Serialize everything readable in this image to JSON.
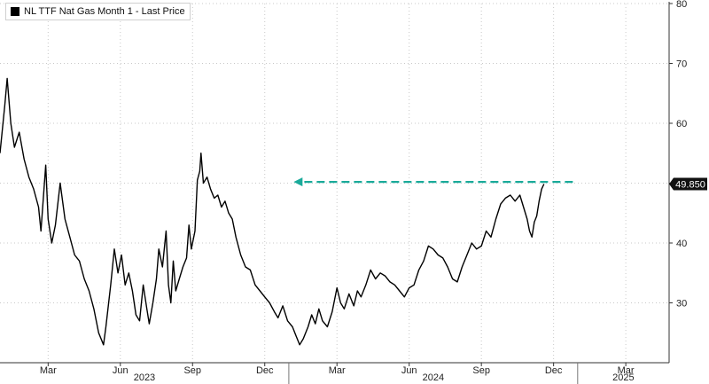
{
  "chart_data": {
    "type": "line",
    "legend": "NL TTF Nat Gas Month 1 - Last Price",
    "last_value_label": "49.850",
    "y_axis": {
      "ticks": [
        30,
        40,
        50,
        60,
        70,
        80
      ],
      "ylim": [
        20,
        80
      ],
      "position": "right"
    },
    "x_axis": {
      "month_ticks": [
        "Mar",
        "Jun",
        "Sep",
        "Dec",
        "Mar",
        "Jun",
        "Sep",
        "Dec",
        "Mar"
      ],
      "year_labels": [
        "2023",
        "2024",
        "2025"
      ],
      "range_months": [
        0,
        27.8
      ]
    },
    "grid": true,
    "annotation": {
      "type": "dashed-arrow",
      "direction": "left",
      "value": 50.2,
      "x_from": 23.8,
      "x_to": 12.2,
      "color": "#1aaa9a"
    },
    "series": [
      {
        "color": "#000000",
        "points": [
          [
            0.0,
            55.0
          ],
          [
            0.2,
            63.0
          ],
          [
            0.3,
            67.5
          ],
          [
            0.45,
            60.0
          ],
          [
            0.6,
            56.0
          ],
          [
            0.8,
            58.5
          ],
          [
            1.0,
            54.0
          ],
          [
            1.2,
            51.0
          ],
          [
            1.4,
            49.0
          ],
          [
            1.6,
            46.0
          ],
          [
            1.7,
            42.0
          ],
          [
            1.9,
            53.0
          ],
          [
            2.0,
            44.0
          ],
          [
            2.15,
            40.0
          ],
          [
            2.3,
            43.0
          ],
          [
            2.5,
            50.0
          ],
          [
            2.7,
            44.0
          ],
          [
            2.9,
            41.0
          ],
          [
            3.1,
            38.0
          ],
          [
            3.3,
            37.0
          ],
          [
            3.5,
            34.0
          ],
          [
            3.7,
            32.0
          ],
          [
            3.9,
            29.0
          ],
          [
            4.1,
            25.0
          ],
          [
            4.3,
            23.0
          ],
          [
            4.4,
            26.0
          ],
          [
            4.6,
            33.0
          ],
          [
            4.75,
            39.0
          ],
          [
            4.9,
            35.0
          ],
          [
            5.05,
            38.0
          ],
          [
            5.2,
            33.0
          ],
          [
            5.35,
            35.0
          ],
          [
            5.5,
            32.0
          ],
          [
            5.65,
            28.0
          ],
          [
            5.8,
            27.0
          ],
          [
            5.95,
            33.0
          ],
          [
            6.1,
            29.0
          ],
          [
            6.2,
            26.5
          ],
          [
            6.35,
            30.0
          ],
          [
            6.5,
            34.0
          ],
          [
            6.6,
            39.0
          ],
          [
            6.75,
            36.0
          ],
          [
            6.9,
            42.0
          ],
          [
            7.0,
            33.0
          ],
          [
            7.1,
            30.0
          ],
          [
            7.2,
            37.0
          ],
          [
            7.3,
            32.0
          ],
          [
            7.45,
            34.0
          ],
          [
            7.6,
            36.0
          ],
          [
            7.75,
            37.5
          ],
          [
            7.85,
            43.0
          ],
          [
            7.95,
            39.0
          ],
          [
            8.1,
            42.0
          ],
          [
            8.2,
            50.5
          ],
          [
            8.3,
            52.0
          ],
          [
            8.35,
            55.0
          ],
          [
            8.45,
            50.0
          ],
          [
            8.6,
            51.0
          ],
          [
            8.75,
            49.0
          ],
          [
            8.9,
            47.5
          ],
          [
            9.05,
            48.0
          ],
          [
            9.2,
            46.0
          ],
          [
            9.35,
            47.0
          ],
          [
            9.5,
            45.0
          ],
          [
            9.65,
            44.0
          ],
          [
            9.8,
            41.0
          ],
          [
            10.0,
            38.0
          ],
          [
            10.2,
            36.0
          ],
          [
            10.4,
            35.5
          ],
          [
            10.6,
            33.0
          ],
          [
            10.8,
            32.0
          ],
          [
            11.0,
            31.0
          ],
          [
            11.2,
            30.0
          ],
          [
            11.4,
            28.5
          ],
          [
            11.55,
            27.5
          ],
          [
            11.75,
            29.5
          ],
          [
            11.95,
            27.0
          ],
          [
            12.15,
            26.0
          ],
          [
            12.3,
            24.5
          ],
          [
            12.45,
            23.0
          ],
          [
            12.6,
            24.0
          ],
          [
            12.8,
            26.0
          ],
          [
            12.95,
            28.0
          ],
          [
            13.1,
            26.5
          ],
          [
            13.25,
            29.0
          ],
          [
            13.4,
            27.0
          ],
          [
            13.6,
            26.0
          ],
          [
            13.8,
            28.5
          ],
          [
            14.0,
            32.5
          ],
          [
            14.15,
            30.0
          ],
          [
            14.3,
            29.0
          ],
          [
            14.5,
            31.5
          ],
          [
            14.7,
            29.5
          ],
          [
            14.85,
            32.0
          ],
          [
            15.0,
            31.0
          ],
          [
            15.2,
            33.0
          ],
          [
            15.4,
            35.5
          ],
          [
            15.6,
            34.0
          ],
          [
            15.8,
            35.0
          ],
          [
            16.0,
            34.5
          ],
          [
            16.2,
            33.5
          ],
          [
            16.4,
            33.0
          ],
          [
            16.6,
            32.0
          ],
          [
            16.8,
            31.0
          ],
          [
            17.0,
            32.5
          ],
          [
            17.2,
            33.0
          ],
          [
            17.4,
            35.5
          ],
          [
            17.6,
            37.0
          ],
          [
            17.8,
            39.5
          ],
          [
            18.0,
            39.0
          ],
          [
            18.2,
            38.0
          ],
          [
            18.4,
            37.5
          ],
          [
            18.6,
            36.0
          ],
          [
            18.8,
            34.0
          ],
          [
            19.0,
            33.5
          ],
          [
            19.2,
            36.0
          ],
          [
            19.4,
            38.0
          ],
          [
            19.6,
            40.0
          ],
          [
            19.8,
            39.0
          ],
          [
            20.0,
            39.5
          ],
          [
            20.2,
            42.0
          ],
          [
            20.4,
            41.0
          ],
          [
            20.6,
            44.0
          ],
          [
            20.8,
            46.5
          ],
          [
            21.0,
            47.5
          ],
          [
            21.2,
            48.0
          ],
          [
            21.4,
            47.0
          ],
          [
            21.6,
            48.0
          ],
          [
            21.75,
            46.0
          ],
          [
            21.9,
            44.0
          ],
          [
            22.0,
            42.0
          ],
          [
            22.1,
            41.0
          ],
          [
            22.2,
            43.5
          ],
          [
            22.3,
            44.5
          ],
          [
            22.4,
            47.0
          ],
          [
            22.5,
            49.0
          ],
          [
            22.6,
            49.85
          ]
        ]
      }
    ]
  }
}
